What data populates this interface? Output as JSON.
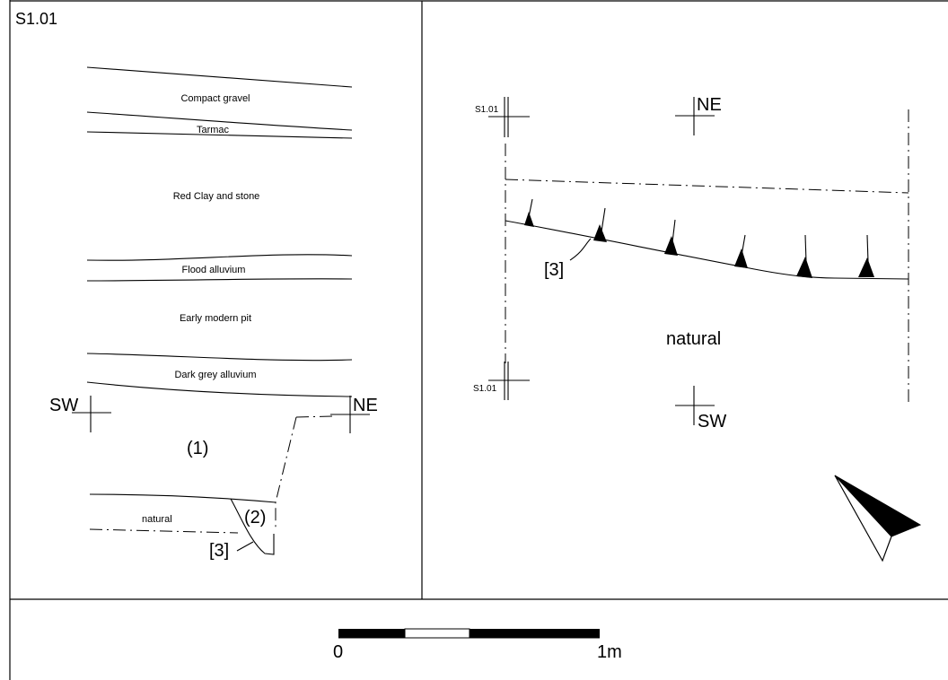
{
  "sheet_id": "S1.01",
  "section": {
    "layers": [
      "Compact gravel",
      "Tarmac",
      "Red Clay and stone",
      "Flood alluvium",
      "Early modern pit",
      "Dark grey alluvium"
    ],
    "context_1": "(1)",
    "context_2": "(2)",
    "cut_3": "[3]",
    "natural": "natural",
    "left_marker": "SW",
    "right_marker": "NE"
  },
  "plan": {
    "marker_top_label": "S1.01",
    "marker_bottom_label": "S1.01",
    "north_label": "NE",
    "south_label": "SW",
    "cut_3": "[3]",
    "natural": "natural"
  },
  "scale_bar": {
    "start_label": "0",
    "end_label": "1m",
    "segments_shown": 4
  },
  "icons": {
    "north_arrow": "north-arrow-icon"
  }
}
